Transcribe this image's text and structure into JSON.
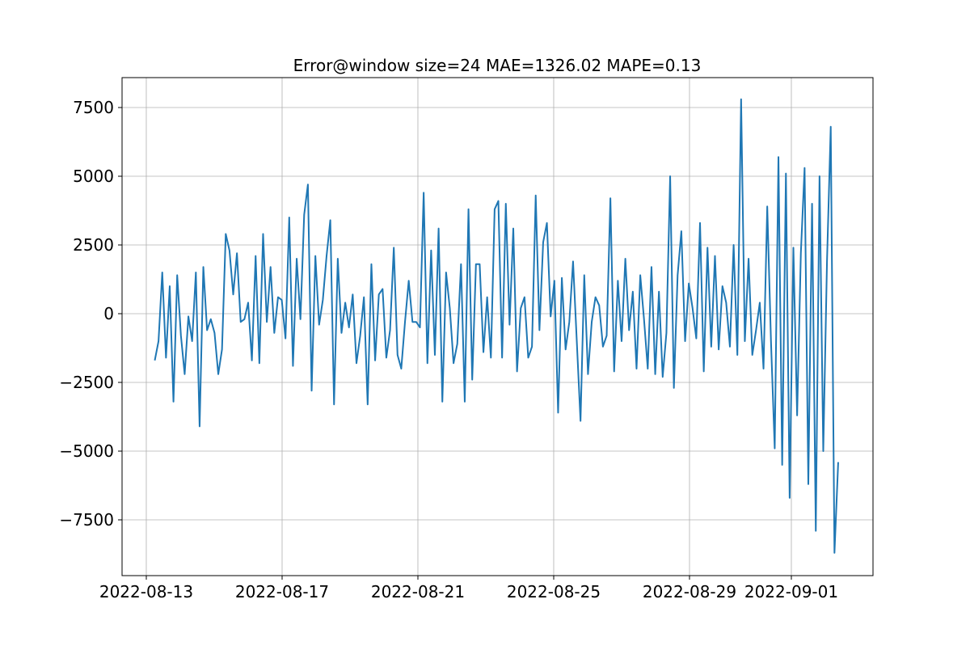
{
  "chart_data": {
    "type": "line",
    "title": "Error@window size=24 MAE=1326.02 MAPE=0.13",
    "color": "#1f77b4",
    "grid": true,
    "xlim": [
      19216.286,
      19238.405
    ],
    "xticks": [
      {
        "value": 19217,
        "label": "2022-08-13"
      },
      {
        "value": 19221,
        "label": "2022-08-17"
      },
      {
        "value": 19225,
        "label": "2022-08-21"
      },
      {
        "value": 19229,
        "label": "2022-08-25"
      },
      {
        "value": 19233,
        "label": "2022-08-29"
      },
      {
        "value": 19236,
        "label": "2022-09-01"
      }
    ],
    "ylim": [
      -9529,
      8588
    ],
    "yticks": [
      {
        "value": -7500,
        "label": "−7500"
      },
      {
        "value": -5000,
        "label": "−5000"
      },
      {
        "value": -2500,
        "label": "−2500"
      },
      0,
      2500,
      5000,
      7500
    ],
    "x": [
      19217.25,
      19217.36,
      19217.47,
      19217.58,
      19217.69,
      19217.8,
      19217.91,
      19218.02,
      19218.13,
      19218.24,
      19218.35,
      19218.46,
      19218.57,
      19218.68,
      19218.79,
      19218.9,
      19219.01,
      19219.12,
      19219.23,
      19219.34,
      19219.45,
      19219.56,
      19219.67,
      19219.78,
      19219.89,
      19220.0,
      19220.11,
      19220.22,
      19220.33,
      19220.44,
      19220.55,
      19220.66,
      19220.77,
      19220.88,
      19220.99,
      19221.1,
      19221.21,
      19221.32,
      19221.43,
      19221.54,
      19221.65,
      19221.76,
      19221.87,
      19221.98,
      19222.09,
      19222.2,
      19222.31,
      19222.42,
      19222.53,
      19222.64,
      19222.75,
      19222.86,
      19222.97,
      19223.08,
      19223.19,
      19223.3,
      19223.41,
      19223.52,
      19223.63,
      19223.74,
      19223.85,
      19223.96,
      19224.07,
      19224.18,
      19224.29,
      19224.4,
      19224.51,
      19224.62,
      19224.73,
      19224.84,
      19224.95,
      19225.06,
      19225.17,
      19225.28,
      19225.39,
      19225.5,
      19225.61,
      19225.72,
      19225.83,
      19225.94,
      19226.05,
      19226.16,
      19226.27,
      19226.38,
      19226.49,
      19226.6,
      19226.71,
      19226.82,
      19226.93,
      19227.04,
      19227.15,
      19227.26,
      19227.37,
      19227.48,
      19227.59,
      19227.7,
      19227.81,
      19227.92,
      19228.03,
      19228.14,
      19228.25,
      19228.36,
      19228.47,
      19228.58,
      19228.69,
      19228.8,
      19228.91,
      19229.02,
      19229.13,
      19229.24,
      19229.35,
      19229.46,
      19229.57,
      19229.68,
      19229.79,
      19229.9,
      19230.01,
      19230.12,
      19230.23,
      19230.34,
      19230.45,
      19230.56,
      19230.67,
      19230.78,
      19230.89,
      19231.0,
      19231.11,
      19231.22,
      19231.33,
      19231.44,
      19231.55,
      19231.66,
      19231.77,
      19231.88,
      19231.99,
      19232.1,
      19232.21,
      19232.32,
      19232.43,
      19232.54,
      19232.65,
      19232.76,
      19232.87,
      19232.98,
      19233.09,
      19233.2,
      19233.31,
      19233.42,
      19233.53,
      19233.64,
      19233.75,
      19233.86,
      19233.97,
      19234.08,
      19234.19,
      19234.3,
      19234.41,
      19234.52,
      19234.63,
      19234.74,
      19234.85,
      19234.96,
      19235.07,
      19235.18,
      19235.29,
      19235.4,
      19235.51,
      19235.62,
      19235.73,
      19235.84,
      19235.95,
      19236.06,
      19236.17,
      19236.28,
      19236.39,
      19236.5,
      19236.61,
      19236.72,
      19236.83,
      19236.94,
      19237.05,
      19237.16,
      19237.27,
      19237.38
    ],
    "values": [
      -1700,
      -1000,
      1500,
      -1600,
      1000,
      -3200,
      1400,
      -800,
      -2200,
      -100,
      -1000,
      1500,
      -4100,
      1700,
      -600,
      -200,
      -700,
      -2200,
      -1300,
      2900,
      2300,
      700,
      2200,
      -300,
      -200,
      400,
      -1700,
      2100,
      -1800,
      2900,
      -300,
      1700,
      -700,
      600,
      500,
      -900,
      3500,
      -1900,
      2000,
      -200,
      3600,
      4700,
      -2800,
      2100,
      -400,
      500,
      2100,
      3400,
      -3300,
      2000,
      -700,
      400,
      -500,
      700,
      -1800,
      -800,
      600,
      -3300,
      1800,
      -1700,
      700,
      900,
      -1600,
      -600,
      2400,
      -1500,
      -2000,
      -300,
      1200,
      -300,
      -300,
      -500,
      4400,
      -1800,
      2300,
      -1500,
      3100,
      -3200,
      1500,
      200,
      -1800,
      -1100,
      1800,
      -3200,
      3800,
      -2400,
      1800,
      1800,
      -1400,
      600,
      -1600,
      3800,
      4100,
      -1600,
      4000,
      -400,
      3100,
      -2100,
      200,
      600,
      -1600,
      -1200,
      4300,
      -600,
      2600,
      3300,
      -100,
      1200,
      -3600,
      1300,
      -1300,
      -300,
      1900,
      -1000,
      -3900,
      1400,
      -2200,
      -300,
      600,
      300,
      -1200,
      -800,
      4200,
      -2100,
      1200,
      -1000,
      2000,
      -600,
      800,
      -2000,
      1400,
      -200,
      -2000,
      1700,
      -2200,
      800,
      -2300,
      -700,
      5000,
      -2700,
      1400,
      3000,
      -1000,
      1100,
      200,
      -900,
      3300,
      -2100,
      2400,
      -1200,
      2100,
      -1300,
      1000,
      400,
      -1200,
      2500,
      -1500,
      7800,
      -1000,
      2000,
      -1500,
      -600,
      400,
      -2000,
      3900,
      -1000,
      -4900,
      5700,
      -5500,
      5100,
      -6700,
      2400,
      -3700,
      2200,
      5300,
      -6200,
      4000,
      -7900,
      5000,
      -5000,
      1900,
      6800,
      -8700,
      -5400
    ]
  }
}
